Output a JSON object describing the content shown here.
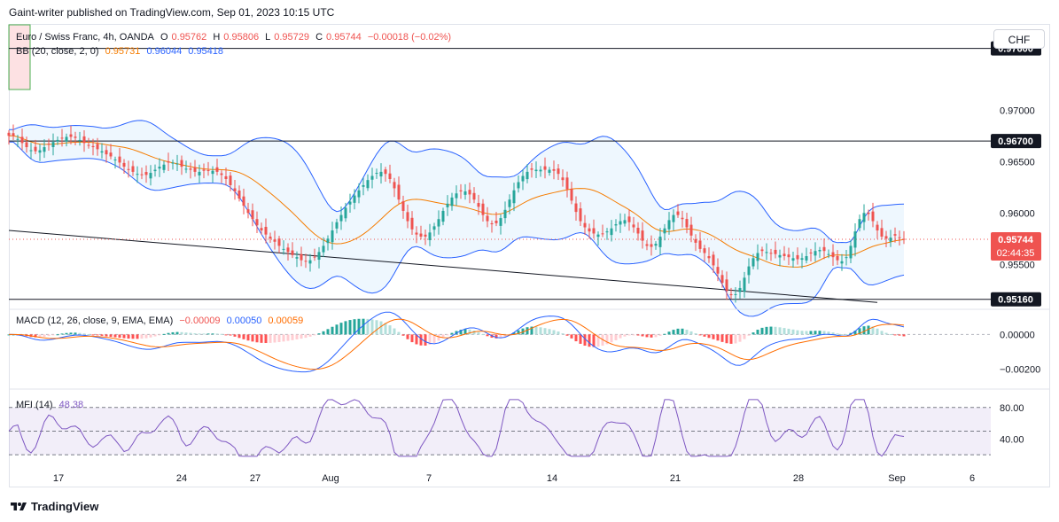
{
  "header": {
    "publisher": "Gaint-writer published on TradingView.com, Sep 01, 2023 10:15 UTC"
  },
  "legend": {
    "symbol": "Euro / Swiss Franc, 4h, OANDA",
    "o_label": "O",
    "o_value": "0.95762",
    "h_label": "H",
    "h_value": "0.95806",
    "l_label": "L",
    "l_value": "0.95729",
    "c_label": "C",
    "c_value": "0.95744",
    "change": "−0.00018 (−0.02%)",
    "bb_label": "BB (20, close, 2, 0)",
    "bb_basis": "0.95731",
    "bb_upper": "0.96044",
    "bb_lower": "0.95418",
    "macd_label": "MACD (12, 26, close, 9, EMA, EMA)",
    "macd_hist": "−0.00009",
    "macd_line": "0.00050",
    "macd_signal": "0.00059",
    "mfi_label": "MFI (14)",
    "mfi_value": "48.38"
  },
  "currency_button": "CHF",
  "price_badges": {
    "current": "0.95744",
    "countdown": "02:44:35"
  },
  "footer": {
    "brand": "TradingView"
  },
  "colors": {
    "up": "#26a69a",
    "down": "#ef5350",
    "bb_band": "#2962ff",
    "bb_basis": "#f57c00",
    "macd_line": "#2962ff",
    "signal_line": "#ff6d00",
    "mfi_line": "#7e57c2"
  },
  "chart_data": {
    "type": "candlestick",
    "symbol": "Euro / Swiss Franc",
    "interval": "4h",
    "price_axis": {
      "ylim": [
        0.9508,
        0.9783
      ],
      "ticks": [
        "0.97000",
        "0.96500",
        "0.96000",
        "0.95500"
      ]
    },
    "x_ticks": [
      "17",
      "24",
      "27",
      "Aug",
      "7",
      "14",
      "21",
      "28",
      "Sep",
      "6"
    ],
    "horizontal_levels": [
      {
        "label": "0.97600",
        "value": 0.976
      },
      {
        "label": "0.96700",
        "value": 0.967
      },
      {
        "label": "0.95160",
        "value": 0.9516
      }
    ],
    "trendline": [
      {
        "x": 0,
        "price": 0.9583
      },
      {
        "x": 196,
        "price": 0.9513
      }
    ],
    "close_series": [
      0.9675,
      0.9675,
      0.9672,
      0.9668,
      0.9664,
      0.9661,
      0.966,
      0.9661,
      0.9664,
      0.9667,
      0.9669,
      0.9671,
      0.9673,
      0.9674,
      0.9674,
      0.9673,
      0.9671,
      0.9668,
      0.9666,
      0.9664,
      0.9662,
      0.966,
      0.9657,
      0.9655,
      0.9652,
      0.9649,
      0.9645,
      0.9642,
      0.964,
      0.9638,
      0.9637,
      0.9637,
      0.9639,
      0.9642,
      0.9645,
      0.9647,
      0.9649,
      0.9649,
      0.9648,
      0.9645,
      0.9643,
      0.9642,
      0.964,
      0.964,
      0.9641,
      0.9641,
      0.9641,
      0.964,
      0.9637,
      0.9633,
      0.9627,
      0.9621,
      0.9614,
      0.9607,
      0.96,
      0.9594,
      0.9588,
      0.9583,
      0.9579,
      0.9575,
      0.9572,
      0.9568,
      0.9565,
      0.9562,
      0.9559,
      0.9557,
      0.9554,
      0.9553,
      0.9554,
      0.9557,
      0.9562,
      0.9568,
      0.9575,
      0.9583,
      0.9591,
      0.9598,
      0.9605,
      0.9611,
      0.9617,
      0.9622,
      0.9627,
      0.9632,
      0.9636,
      0.9639,
      0.964,
      0.9638,
      0.9633,
      0.9624,
      0.9613,
      0.9602,
      0.9592,
      0.9584,
      0.9579,
      0.9577,
      0.9577,
      0.9581,
      0.9587,
      0.9594,
      0.9602,
      0.9609,
      0.9615,
      0.9619,
      0.9621,
      0.9621,
      0.9618,
      0.9613,
      0.9606,
      0.9598,
      0.9592,
      0.9589,
      0.959,
      0.9595,
      0.9603,
      0.9613,
      0.9622,
      0.963,
      0.9636,
      0.964,
      0.9642,
      0.9642,
      0.9642,
      0.9642,
      0.9642,
      0.9641,
      0.9638,
      0.9632,
      0.9623,
      0.9612,
      0.9601,
      0.9592,
      0.9586,
      0.9582,
      0.958,
      0.9579,
      0.958,
      0.9582,
      0.9585,
      0.9589,
      0.9592,
      0.9593,
      0.9591,
      0.9586,
      0.958,
      0.9573,
      0.9568,
      0.9567,
      0.957,
      0.9577,
      0.9585,
      0.9593,
      0.9598,
      0.9598,
      0.9594,
      0.9586,
      0.9578,
      0.9571,
      0.9565,
      0.9561,
      0.9556,
      0.9549,
      0.9541,
      0.9532,
      0.9524,
      0.952,
      0.9521,
      0.9527,
      0.9537,
      0.9548,
      0.9556,
      0.9561,
      0.9563,
      0.9562,
      0.9561,
      0.956,
      0.9559,
      0.9558,
      0.9557,
      0.9556,
      0.9555,
      0.9556,
      0.9558,
      0.9561,
      0.9563,
      0.9564,
      0.9563,
      0.956,
      0.9557,
      0.9554,
      0.9553,
      0.9557,
      0.9568,
      0.9582,
      0.9594,
      0.96,
      0.9599,
      0.9592,
      0.9583,
      0.9577,
      0.9575,
      0.9576,
      0.9578,
      0.9576,
      0.9574
    ],
    "last_price": 0.95744,
    "macd": {
      "axis_ticks": [
        "0.00000",
        "−0.00200"
      ],
      "ylim": [
        -0.003,
        0.0013
      ]
    },
    "mfi": {
      "axis_ticks": [
        "80.00",
        "40.00"
      ],
      "ylim": [
        10,
        100
      ],
      "bands": [
        80,
        50,
        20
      ]
    }
  }
}
